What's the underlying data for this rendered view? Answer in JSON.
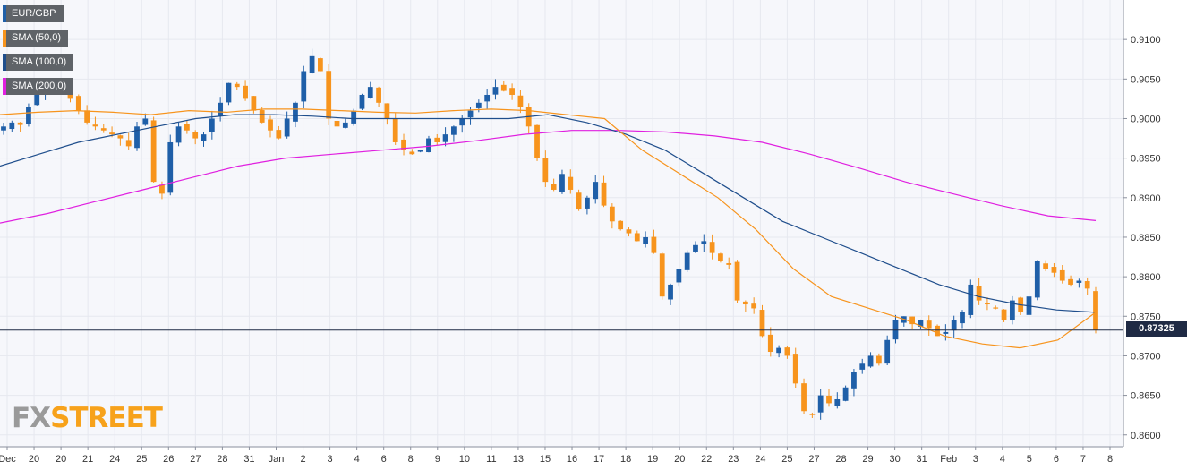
{
  "chart_data": {
    "type": "candlestick",
    "symbol": "EUR/GBP",
    "legend": [
      {
        "label": "EUR/GBP",
        "color": "#1f5fa8"
      },
      {
        "label": "SMA (50,0)",
        "color": "#f7941d"
      },
      {
        "label": "SMA (100,0)",
        "color": "#1f4e8c"
      },
      {
        "label": "SMA (200,0)",
        "color": "#e020e0"
      }
    ],
    "ylim": [
      0.8585,
      0.915
    ],
    "y_ticks": [
      "0.9100",
      "0.9050",
      "0.9000",
      "0.8950",
      "0.8900",
      "0.8850",
      "0.8800",
      "0.8750",
      "0.8700",
      "0.8650",
      "0.8600"
    ],
    "y_tick_values": [
      0.91,
      0.905,
      0.9,
      0.895,
      0.89,
      0.885,
      0.88,
      0.875,
      0.87,
      0.865,
      0.86
    ],
    "x_ticks": [
      "Dec",
      "20",
      "20",
      "21",
      "24",
      "25",
      "26",
      "27",
      "28",
      "31",
      "Jan",
      "2",
      "3",
      "4",
      "6",
      "8",
      "9",
      "10",
      "11",
      "13",
      "15",
      "16",
      "17",
      "18",
      "19",
      "20",
      "22",
      "23",
      "24",
      "25",
      "27",
      "28",
      "29",
      "30",
      "31",
      "Feb",
      "3",
      "4",
      "5",
      "6",
      "7",
      "8"
    ],
    "current_price": "0.87325",
    "current_value": 0.87325,
    "grid": true,
    "legend_placement": "top-left",
    "candle_up_color": "#1f5fa8",
    "candle_down_color": "#f7941d",
    "sma50": [
      0.9005,
      0.9008,
      0.901,
      0.9008,
      0.9005,
      0.901,
      0.9008,
      0.9012,
      0.9012,
      0.901,
      0.9008,
      0.9007,
      0.901,
      0.9012,
      0.901,
      0.9005,
      0.9,
      0.896,
      0.893,
      0.89,
      0.886,
      0.881,
      0.8775,
      0.876,
      0.8745,
      0.8725,
      0.8715,
      0.871,
      0.872,
      0.8755
    ],
    "sma100": [
      0.894,
      0.8955,
      0.897,
      0.898,
      0.899,
      0.9,
      0.9005,
      0.9005,
      0.9003,
      0.9,
      0.9,
      0.9,
      0.9,
      0.9,
      0.9005,
      0.8995,
      0.898,
      0.896,
      0.893,
      0.89,
      0.887,
      0.885,
      0.883,
      0.881,
      0.879,
      0.8775,
      0.8765,
      0.8758,
      0.8755
    ],
    "sma200": [
      0.8868,
      0.888,
      0.8895,
      0.891,
      0.8925,
      0.894,
      0.895,
      0.8955,
      0.896,
      0.8965,
      0.8972,
      0.898,
      0.8985,
      0.8985,
      0.8983,
      0.8978,
      0.897,
      0.8955,
      0.8938,
      0.892,
      0.8905,
      0.889,
      0.8877,
      0.8871
    ],
    "candles": []
  },
  "logo": {
    "fx": "FX",
    "street": "STREET"
  }
}
